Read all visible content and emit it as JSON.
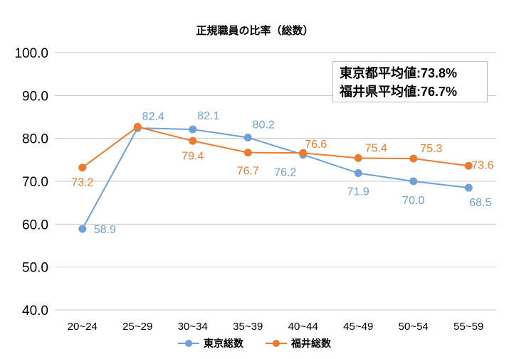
{
  "chart_data": {
    "type": "line",
    "title": "正規職員の比率（総数）",
    "categories": [
      "20~24",
      "25~29",
      "30~34",
      "35~39",
      "40~44",
      "45~49",
      "50~54",
      "55~59"
    ],
    "ylim": [
      40,
      100
    ],
    "yticks": [
      "40.0",
      "50.0",
      "60.0",
      "70.0",
      "80.0",
      "90.0",
      "100.0"
    ],
    "grid": true,
    "legend_position": "bottom",
    "series": [
      {
        "name": "東京総数",
        "color": "#6fa0d6",
        "values": [
          58.9,
          82.4,
          82.1,
          80.2,
          76.2,
          71.9,
          70.0,
          68.5
        ],
        "labels": [
          "58.9",
          "82.4",
          "82.1",
          "80.2",
          "76.2",
          "71.9",
          "70.0",
          "68.5"
        ]
      },
      {
        "name": "福井総数",
        "color": "#e97c30",
        "values": [
          73.2,
          82.7,
          79.4,
          76.7,
          76.6,
          75.4,
          75.3,
          73.6
        ],
        "labels": [
          "73.2",
          null,
          "79.4",
          "76.7",
          "76.6",
          "75.4",
          "75.3",
          "73.6"
        ]
      }
    ],
    "annotation": [
      "東京都平均値:73.8%",
      "福井県平均値:76.7%"
    ]
  }
}
